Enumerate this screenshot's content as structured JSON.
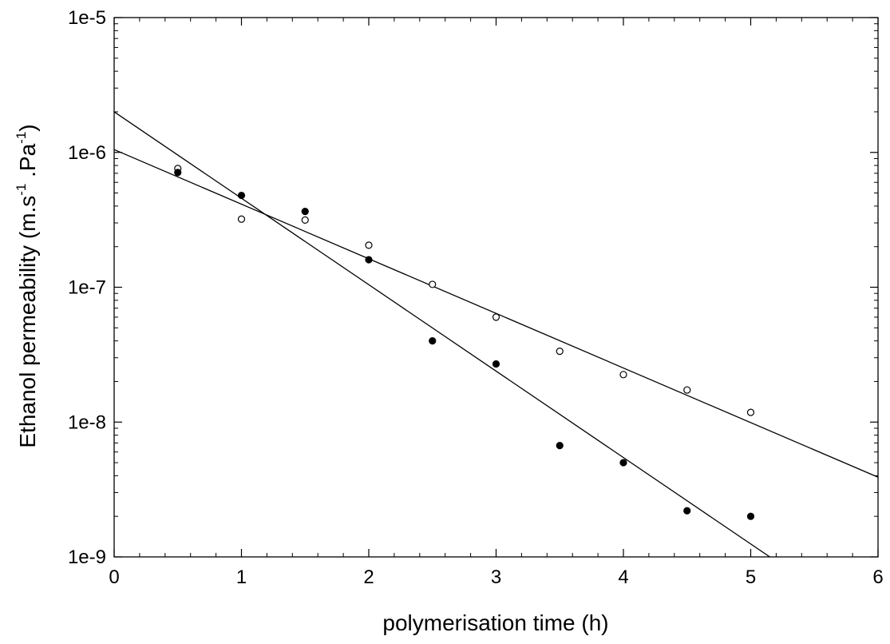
{
  "chart_data": {
    "type": "scatter",
    "title": "",
    "xlabel": "polymerisation time (h)",
    "ylabel": {
      "parts": [
        "Ethanol permeability (m.s",
        "-1",
        " .Pa",
        "-1",
        ")"
      ]
    },
    "xlim": [
      0,
      6
    ],
    "ylim": [
      1e-09,
      1e-05
    ],
    "yscale": "log",
    "grid": false,
    "legend": "none",
    "x_ticks": [
      {
        "value": 0,
        "label": "0"
      },
      {
        "value": 1,
        "label": "1"
      },
      {
        "value": 2,
        "label": "2"
      },
      {
        "value": 3,
        "label": "3"
      },
      {
        "value": 4,
        "label": "4"
      },
      {
        "value": 5,
        "label": "5"
      },
      {
        "value": 6,
        "label": "6"
      }
    ],
    "y_ticks": [
      {
        "value": 1e-09,
        "label": "1e-9"
      },
      {
        "value": 1e-08,
        "label": "1e-8"
      },
      {
        "value": 1e-07,
        "label": "1e-7"
      },
      {
        "value": 1e-06,
        "label": "1e-6"
      },
      {
        "value": 1e-05,
        "label": "1e-5"
      }
    ],
    "series": [
      {
        "marker": "open-circle",
        "color": "#000000",
        "points": [
          {
            "x": 0.5,
            "y": 7.6e-07
          },
          {
            "x": 1.0,
            "y": 3.2e-07
          },
          {
            "x": 1.5,
            "y": 3.15e-07
          },
          {
            "x": 2.0,
            "y": 2.05e-07
          },
          {
            "x": 2.5,
            "y": 1.05e-07
          },
          {
            "x": 3.0,
            "y": 6e-08
          },
          {
            "x": 3.5,
            "y": 3.35e-08
          },
          {
            "x": 4.0,
            "y": 2.25e-08
          },
          {
            "x": 4.5,
            "y": 1.73e-08
          },
          {
            "x": 5.0,
            "y": 1.18e-08
          }
        ],
        "fit_line": {
          "points": [
            {
              "x": 0,
              "y": 1.05e-06
            },
            {
              "x": 6,
              "y": 3.9e-09
            }
          ]
        }
      },
      {
        "marker": "filled-circle",
        "color": "#000000",
        "points": [
          {
            "x": 0.5,
            "y": 7.1e-07
          },
          {
            "x": 1.0,
            "y": 4.8e-07
          },
          {
            "x": 1.5,
            "y": 3.65e-07
          },
          {
            "x": 2.0,
            "y": 1.6e-07
          },
          {
            "x": 2.5,
            "y": 4e-08
          },
          {
            "x": 3.0,
            "y": 2.7e-08
          },
          {
            "x": 3.5,
            "y": 6.7e-09
          },
          {
            "x": 4.0,
            "y": 5e-09
          },
          {
            "x": 4.5,
            "y": 2.2e-09
          },
          {
            "x": 5.0,
            "y": 2e-09
          }
        ],
        "fit_line": {
          "points": [
            {
              "x": 0,
              "y": 2e-06
            },
            {
              "x": 5.15,
              "y": 1e-09
            }
          ]
        }
      }
    ]
  }
}
